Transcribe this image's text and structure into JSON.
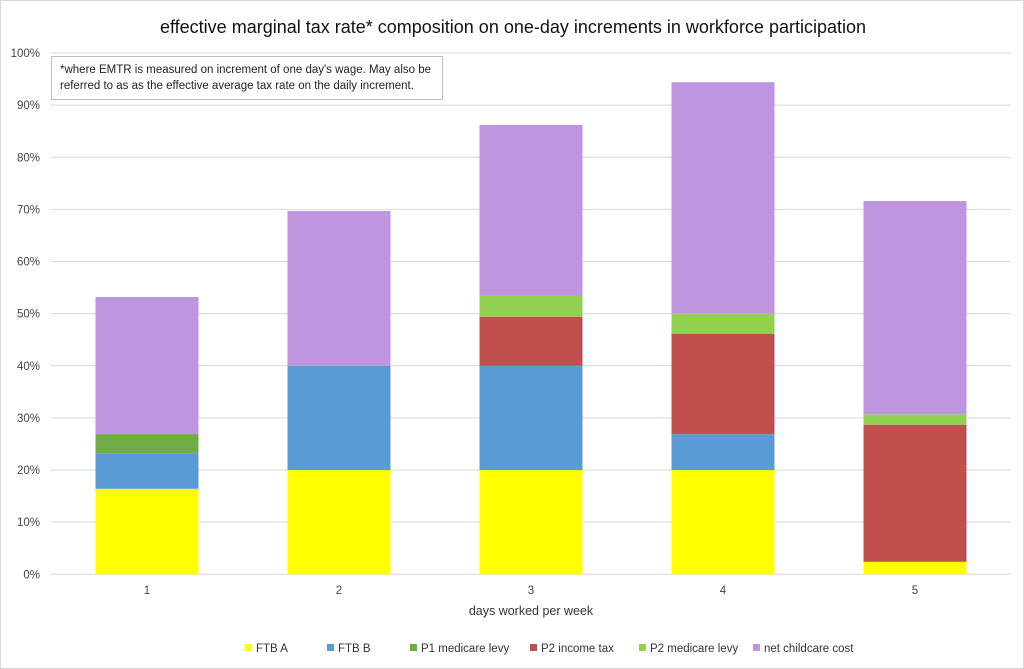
{
  "chart_data": {
    "type": "bar",
    "stacked": true,
    "title": "effective marginal tax rate* composition on one-day increments in workforce participation",
    "note": "*where EMTR is measured on increment of one day's wage. May also be referred to as as the effective average tax rate on the daily increment.",
    "xlabel": "days worked per week",
    "ylabel": "",
    "ylim": [
      0,
      100
    ],
    "yticks": [
      "0%",
      "10%",
      "20%",
      "30%",
      "40%",
      "50%",
      "60%",
      "70%",
      "80%",
      "90%",
      "100%"
    ],
    "categories": [
      "1",
      "2",
      "3",
      "4",
      "5"
    ],
    "legend_position": "bottom",
    "grid": true,
    "series": [
      {
        "name": "FTB A",
        "color": "#ffff00",
        "values": [
          16.4,
          20,
          20,
          20,
          2.4
        ]
      },
      {
        "name": "FTB B",
        "color": "#5b9bd5",
        "values": [
          6.8,
          20,
          20,
          6.9,
          0
        ]
      },
      {
        "name": "P1 medicare levy",
        "color": "#70ad47",
        "values": [
          3.7,
          0,
          0,
          0,
          0
        ]
      },
      {
        "name": "P2 income tax",
        "color": "#c0504d",
        "values": [
          0,
          0,
          9.4,
          19.2,
          26.3
        ]
      },
      {
        "name": "P2 medicare levy",
        "color": "#92d050",
        "values": [
          0,
          0,
          4.0,
          3.9,
          2.0
        ]
      },
      {
        "name": "net childcare cost",
        "color": "#bf95df",
        "values": [
          26.3,
          29.7,
          32.8,
          44.4,
          40.9
        ]
      }
    ]
  }
}
